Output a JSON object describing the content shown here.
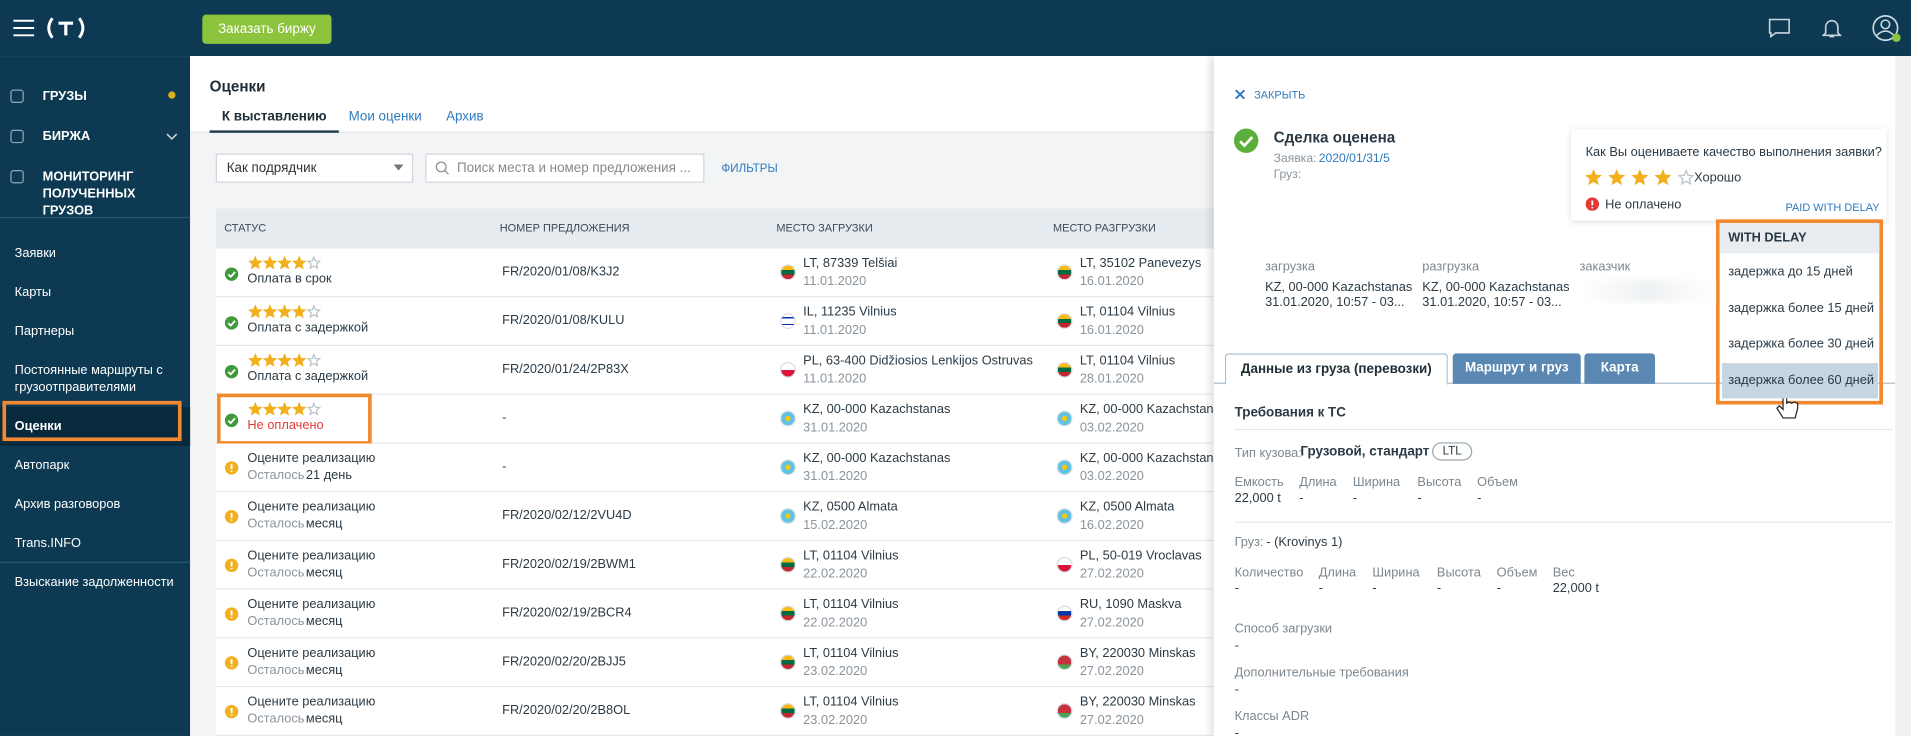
{
  "topbar": {
    "order_button": "Заказать биржу"
  },
  "sidebar": {
    "main": [
      {
        "label": "ГРУЗЫ"
      },
      {
        "label": "БИРЖА"
      },
      {
        "label": "МОНИТОРИНГ ПОЛУЧЕННЫХ ГРУЗОВ"
      }
    ],
    "links": [
      {
        "label": "Заявки"
      },
      {
        "label": "Карты"
      },
      {
        "label": "Партнеры"
      },
      {
        "label": "Постоянные маршруты с грузоотправителями"
      },
      {
        "label": "Оценки",
        "active": true,
        "highlighted": true
      },
      {
        "label": "Автопарк"
      },
      {
        "label": "Архив разговоров"
      },
      {
        "label": "Trans.INFO"
      }
    ],
    "extra": [
      {
        "label": "Взыскание задолженности"
      }
    ]
  },
  "page": {
    "title": "Оценки",
    "tabs": [
      {
        "label": "К выставлению",
        "active": true
      },
      {
        "label": "Мои оценки"
      },
      {
        "label": "Архив"
      }
    ],
    "role_select": "Как подрядчик",
    "search_placeholder": "Поиск места и номер предложения ...",
    "filters": "ФИЛЬТРЫ"
  },
  "table": {
    "columns": [
      "СТАТУС",
      "НОМЕР ПРЕДЛОЖЕНИЯ",
      "МЕСТО ЗАГРУЗКИ",
      "МЕСТО РАЗГРУЗКИ"
    ],
    "rating_max": 5,
    "rows": [
      {
        "icon": "check",
        "rating": 4,
        "status": "Оплата в срок",
        "number": "FR/2020/01/08/K3J2",
        "load": {
          "place": "LT, 87339 Telšiai",
          "date": "11.01.2020"
        },
        "unload": {
          "place": "LT, 35102 Panevezys",
          "date": "16.01.2020"
        }
      },
      {
        "icon": "check",
        "rating": 4,
        "status": "Оплата с задержкой",
        "number": "FR/2020/01/08/KULU",
        "load": {
          "place": "IL, 11235 Vilnius",
          "date": "11.01.2020"
        },
        "unload": {
          "place": "LT, 01104 Vilnius",
          "date": "16.01.2020"
        }
      },
      {
        "icon": "check",
        "rating": 4,
        "status": "Оплата с задержкой",
        "number": "FR/2020/01/24/2P83X",
        "load": {
          "place": "PL, 63-400 Didžiosios Lenkijos Ostruvas",
          "date": "11.01.2020"
        },
        "unload": {
          "place": "LT, 01104 Vilnius",
          "date": "28.01.2020"
        }
      },
      {
        "icon": "check",
        "rating": 4,
        "status": "Не оплачено",
        "status_color": "#e53935",
        "highlighted": true,
        "number": "-",
        "load": {
          "place": "KZ, 00-000 Kazachstanas",
          "date": "31.01.2020"
        },
        "unload": {
          "place": "KZ, 00-000 Kazachstanas",
          "date": "03.02.2020"
        }
      },
      {
        "icon": "warning",
        "status": "Оцените реализацию",
        "remaining_label": "Осталось",
        "remaining": "21 день",
        "number": "-",
        "load": {
          "place": "KZ, 00-000 Kazachstanas",
          "date": "31.01.2020"
        },
        "unload": {
          "place": "KZ, 00-000 Kazachstanas",
          "date": "03.02.2020"
        }
      },
      {
        "icon": "warning",
        "status": "Оцените реализацию",
        "remaining_label": "Осталось",
        "remaining": "месяц",
        "number": "FR/2020/02/12/2VU4D",
        "load": {
          "place": "KZ, 0500 Almata",
          "date": "15.02.2020"
        },
        "unload": {
          "place": "KZ, 0500 Almata",
          "date": "16.02.2020"
        }
      },
      {
        "icon": "warning",
        "status": "Оцените реализацию",
        "remaining_label": "Осталось",
        "remaining": "месяц",
        "number": "FR/2020/02/19/2BWM1",
        "load": {
          "place": "LT, 01104 Vilnius",
          "date": "22.02.2020"
        },
        "unload": {
          "place": "PL, 50-019 Vroclavas",
          "date": "27.02.2020"
        }
      },
      {
        "icon": "warning",
        "status": "Оцените реализацию",
        "remaining_label": "Осталось",
        "remaining": "месяц",
        "number": "FR/2020/02/19/2BCR4",
        "load": {
          "place": "LT, 01104 Vilnius",
          "date": "22.02.2020"
        },
        "unload": {
          "place": "RU, 1090 Maskva",
          "date": "27.02.2020"
        }
      },
      {
        "icon": "warning",
        "status": "Оцените реализацию",
        "remaining_label": "Осталось",
        "remaining": "месяц",
        "number": "FR/2020/02/20/2BJJ5",
        "load": {
          "place": "LT, 01104 Vilnius",
          "date": "23.02.2020"
        },
        "unload": {
          "place": "BY, 220030 Minskas",
          "date": "27.02.2020"
        }
      },
      {
        "icon": "warning",
        "status": "Оцените реализацию",
        "remaining_label": "Осталось",
        "remaining": "месяц",
        "number": "FR/2020/02/20/2B8OL",
        "load": {
          "place": "LT, 01104 Vilnius",
          "date": "23.02.2020"
        },
        "unload": {
          "place": "BY, 220030 Minskas",
          "date": "27.02.2020"
        }
      }
    ]
  },
  "panel": {
    "close": "ЗАКРЫТЬ",
    "deal": {
      "title": "Сделка оценена",
      "request_label": "Заявка:",
      "request": "2020/01/31/5",
      "cargo_label": "Груз:"
    },
    "rating": {
      "question": "Как Вы оцениваете качество выполнения заявки?",
      "stars": 4,
      "max": 5,
      "label": "Хорошо",
      "payment": "Не оплачено",
      "payment_action": "PAID WITH DELAY"
    },
    "dropdown": {
      "header": "WITH DELAY",
      "options": [
        {
          "label": "задержка до 15 дней"
        },
        {
          "label": "задержка более 15 дней"
        },
        {
          "label": "задержка более 30 дней"
        },
        {
          "label": "задержка более 60 дней",
          "hovered": true
        }
      ]
    },
    "route": [
      {
        "label": "загрузка",
        "place": "KZ, 00-000 Kazachstanas",
        "time": "31.01.2020, 10:57 - 03..."
      },
      {
        "label": "разгрузка",
        "place": "KZ, 00-000 Kazachstanas",
        "time": "31.01.2020, 10:57 - 03..."
      },
      {
        "label": "заказчик"
      }
    ],
    "tabs": [
      {
        "label": "Данные из груза (перевозки)",
        "active": true
      },
      {
        "label": "Маршрут и груз"
      },
      {
        "label": "Карта"
      }
    ],
    "vehicle": {
      "title": "Требования к ТС",
      "body_label": "Тип кузова:",
      "body": "Грузовой, стандарт",
      "badge": "LTL",
      "fields": [
        {
          "label": "Емкость",
          "value": "22,000 t"
        },
        {
          "label": "Длина",
          "value": "-"
        },
        {
          "label": "Ширина",
          "value": "-"
        },
        {
          "label": "Высота",
          "value": "-"
        },
        {
          "label": "Объем",
          "value": "-"
        }
      ]
    },
    "cargo": {
      "label": "Груз:",
      "value": "- (Krovinys 1)",
      "fields": [
        {
          "label": "Количество",
          "value": "-"
        },
        {
          "label": "Длина",
          "value": "-"
        },
        {
          "label": "Ширина",
          "value": "-"
        },
        {
          "label": "Высота",
          "value": "-"
        },
        {
          "label": "Объем",
          "value": "-"
        },
        {
          "label": "Вес",
          "value": "22,000 t"
        }
      ]
    },
    "extra": [
      {
        "label": "Способ загрузки",
        "value": "-"
      },
      {
        "label": "Дополнительные требования",
        "value": "-"
      },
      {
        "label": "Классы ADR",
        "value": "-"
      }
    ]
  }
}
